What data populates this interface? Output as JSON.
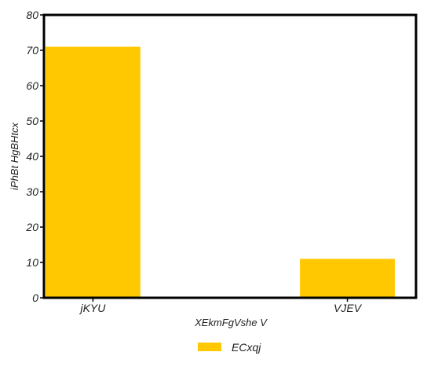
{
  "chart_data": {
    "type": "bar",
    "categories": [
      "jKYU",
      "VJEV"
    ],
    "series": [
      {
        "name": "ECxqj",
        "values": [
          71,
          11
        ],
        "color": "#ffc800"
      }
    ],
    "xlabel": "XEkmFgVshe V",
    "ylabel": "iPhBt HgBHtcx",
    "ylim": [
      0,
      80
    ],
    "yticks": [
      0,
      10,
      20,
      30,
      40,
      50,
      60,
      70,
      80
    ],
    "grid": false,
    "legend_position": "bottom-center"
  }
}
